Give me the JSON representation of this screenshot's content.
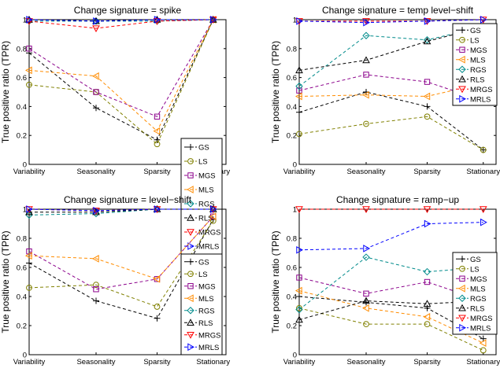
{
  "chart_data": [
    {
      "type": "line",
      "title": "Change signature = spike",
      "ylabel": "True positive ratio (TPR)",
      "xlabel": "",
      "categories": [
        "Variability",
        "Seasonality",
        "Sparsity",
        "Stationary"
      ],
      "ylim": [
        0,
        1
      ],
      "yticks": [
        "0",
        "0.2",
        "0.4",
        "0.6",
        "0.8",
        "1"
      ],
      "grid": false,
      "legend_placement": "right",
      "series": [
        {
          "name": "GS",
          "values": [
            0.77,
            0.39,
            0.17,
            1.0
          ]
        },
        {
          "name": "LS",
          "values": [
            0.55,
            0.5,
            0.14,
            1.0
          ]
        },
        {
          "name": "MGS",
          "values": [
            0.8,
            0.5,
            0.33,
            1.0
          ]
        },
        {
          "name": "MLS",
          "values": [
            0.65,
            0.61,
            0.23,
            1.0
          ]
        },
        {
          "name": "RGS",
          "values": [
            0.99,
            0.99,
            0.99,
            1.0
          ]
        },
        {
          "name": "RLS",
          "values": [
            1.0,
            0.99,
            1.0,
            1.0
          ]
        },
        {
          "name": "MRGS",
          "values": [
            0.99,
            0.94,
            0.99,
            1.0
          ]
        },
        {
          "name": "MRLS",
          "values": [
            1.0,
            0.99,
            1.0,
            1.0
          ]
        }
      ]
    },
    {
      "type": "line",
      "title": "Change signature = temp level−shift",
      "ylabel": "True positive ratio (TPR)",
      "xlabel": "",
      "categories": [
        "Variability",
        "Seasonality",
        "Sparsity",
        "Stationary"
      ],
      "ylim": [
        0,
        1
      ],
      "yticks": [
        "0",
        "0.2",
        "0.4",
        "0.6",
        "0.8",
        "1"
      ],
      "grid": false,
      "legend_placement": "right",
      "series": [
        {
          "name": "GS",
          "values": [
            0.36,
            0.5,
            0.4,
            0.1
          ]
        },
        {
          "name": "LS",
          "values": [
            0.21,
            0.28,
            0.33,
            0.1
          ]
        },
        {
          "name": "MGS",
          "values": [
            0.51,
            0.62,
            0.57,
            0.44
          ]
        },
        {
          "name": "MLS",
          "values": [
            0.47,
            0.48,
            0.47,
            0.56
          ]
        },
        {
          "name": "RGS",
          "values": [
            0.54,
            0.89,
            0.86,
            0.95
          ]
        },
        {
          "name": "RLS",
          "values": [
            0.65,
            0.72,
            0.85,
            0.95
          ]
        },
        {
          "name": "MRGS",
          "values": [
            0.99,
            0.99,
            0.99,
            1.0
          ]
        },
        {
          "name": "MRLS",
          "values": [
            0.99,
            0.98,
            0.99,
            1.0
          ]
        }
      ]
    },
    {
      "type": "line",
      "title": "Change signature = level−shift",
      "ylabel": "True positive ratio (TPR)",
      "xlabel": "",
      "categories": [
        "Variability",
        "Seasonality",
        "Sparsity",
        "Stationary"
      ],
      "ylim": [
        0,
        1
      ],
      "yticks": [
        "0",
        "0.2",
        "0.4",
        "0.6",
        "0.8",
        "1"
      ],
      "grid": false,
      "legend_placement": "right",
      "series": [
        {
          "name": "GS",
          "values": [
            0.63,
            0.37,
            0.25,
            0.93
          ]
        },
        {
          "name": "LS",
          "values": [
            0.46,
            0.48,
            0.33,
            0.92
          ]
        },
        {
          "name": "MGS",
          "values": [
            0.71,
            0.45,
            0.52,
            0.95
          ]
        },
        {
          "name": "MLS",
          "values": [
            0.68,
            0.66,
            0.52,
            0.95
          ]
        },
        {
          "name": "RGS",
          "values": [
            0.96,
            0.97,
            1.0,
            1.0
          ]
        },
        {
          "name": "RLS",
          "values": [
            0.98,
            0.98,
            1.0,
            1.0
          ]
        },
        {
          "name": "MRGS",
          "values": [
            1.0,
            0.99,
            1.0,
            1.0
          ]
        },
        {
          "name": "MRLS",
          "values": [
            1.0,
            0.99,
            1.0,
            1.0
          ]
        }
      ]
    },
    {
      "type": "line",
      "title": "Change signature = ramp−up",
      "ylabel": "True positive ratio (TPR)",
      "xlabel": "",
      "categories": [
        "Variability",
        "Seasonality",
        "Sparsity",
        "Stationary"
      ],
      "ylim": [
        0,
        1
      ],
      "yticks": [
        "0",
        "0.2",
        "0.4",
        "0.6",
        "0.8",
        "1"
      ],
      "grid": false,
      "legend_placement": "right",
      "series": [
        {
          "name": "GS",
          "values": [
            0.4,
            0.36,
            0.32,
            0.11
          ]
        },
        {
          "name": "LS",
          "values": [
            0.32,
            0.21,
            0.21,
            0.03
          ]
        },
        {
          "name": "MGS",
          "values": [
            0.53,
            0.42,
            0.5,
            0.37
          ]
        },
        {
          "name": "MLS",
          "values": [
            0.44,
            0.32,
            0.26,
            0.08
          ]
        },
        {
          "name": "RGS",
          "values": [
            0.31,
            0.67,
            0.57,
            0.6
          ]
        },
        {
          "name": "RLS",
          "values": [
            0.24,
            0.37,
            0.35,
            0.37
          ]
        },
        {
          "name": "MRGS",
          "values": [
            1.0,
            1.0,
            1.0,
            1.0
          ]
        },
        {
          "name": "MRLS",
          "values": [
            0.72,
            0.73,
            0.9,
            0.91
          ]
        }
      ]
    }
  ],
  "series_styles": {
    "GS": {
      "color": "#000000",
      "marker": "plus"
    },
    "LS": {
      "color": "#808000",
      "marker": "circle"
    },
    "MGS": {
      "color": "#8b008b",
      "marker": "square"
    },
    "MLS": {
      "color": "#ff8c00",
      "marker": "triangle-left"
    },
    "RGS": {
      "color": "#008b8b",
      "marker": "diamond"
    },
    "RLS": {
      "color": "#000000",
      "marker": "triangle-up"
    },
    "MRGS": {
      "color": "#ff0000",
      "marker": "triangle-down"
    },
    "MRLS": {
      "color": "#0000ff",
      "marker": "triangle-right"
    }
  }
}
